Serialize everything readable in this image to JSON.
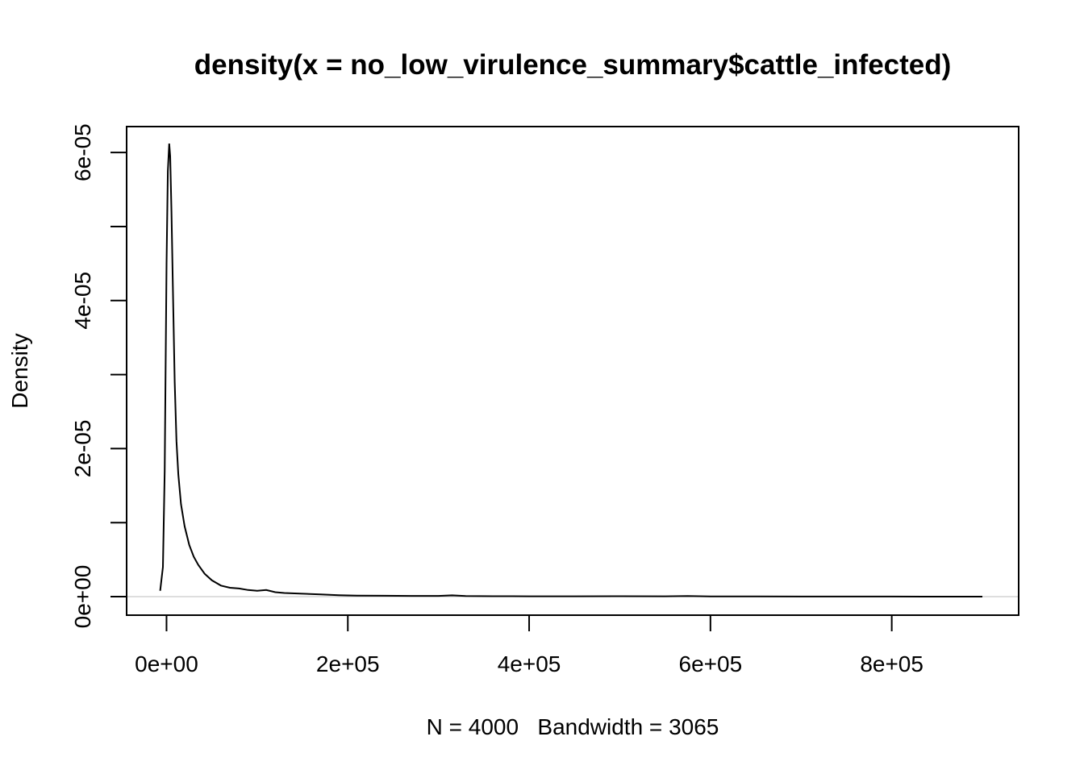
{
  "chart_data": {
    "type": "line",
    "title": "density(x = no_low_virulence_summary$cattle_infected)",
    "xlabel": "N = 4000   Bandwidth = 3065",
    "ylabel": "Density",
    "xlim": [
      -44000,
      940000
    ],
    "ylim": [
      -2.5e-06,
      6.35e-05
    ],
    "x_ticks": [
      0,
      200000,
      400000,
      600000,
      800000
    ],
    "x_tick_labels": [
      "0e+00",
      "2e+05",
      "4e+05",
      "6e+05",
      "8e+05"
    ],
    "y_ticks": [
      0,
      1e-05,
      2e-05,
      3e-05,
      4e-05,
      5e-05,
      6e-05
    ],
    "y_tick_labels": [
      "0e+00",
      "",
      "2e-05",
      "",
      "4e-05",
      "",
      "6e-05"
    ],
    "zero_line_color": "#bebebe",
    "line_color": "#000000",
    "grid": false,
    "legend": "none",
    "series": [
      {
        "x": [
          -7000,
          -4000,
          -2000,
          0,
          1500,
          3000,
          4000,
          5500,
          7000,
          9000,
          11000,
          13000,
          16000,
          20000,
          25000,
          30000,
          35000,
          42000,
          50000,
          60000,
          70000,
          80000,
          90000,
          100000,
          110000,
          120000,
          130000,
          150000,
          170000,
          190000,
          210000,
          240000,
          270000,
          300000,
          315000,
          330000,
          360000,
          400000,
          450000,
          500000,
          550000,
          575000,
          600000,
          650000,
          700000,
          750000,
          800000,
          850000,
          900000
        ],
        "y": [
          8e-07,
          4e-06,
          1.7e-05,
          4.5e-05,
          5.75e-05,
          6.12e-05,
          5.95e-05,
          5.2e-05,
          4.2e-05,
          2.9e-05,
          2.1e-05,
          1.65e-05,
          1.25e-05,
          9.5e-06,
          7e-06,
          5.4e-06,
          4.3e-06,
          3.1e-06,
          2.2e-06,
          1.5e-06,
          1.2e-06,
          1.1e-06,
          9e-07,
          8e-07,
          9e-07,
          6e-07,
          5e-07,
          4e-07,
          3e-07,
          2e-07,
          1.5e-07,
          1.2e-07,
          1e-07,
          1e-07,
          1.8e-07,
          8e-08,
          6e-08,
          5e-08,
          5e-08,
          6e-08,
          5e-08,
          8e-08,
          4e-08,
          3e-08,
          2e-08,
          2e-08,
          2e-08,
          1e-08,
          0.0
        ]
      }
    ]
  }
}
